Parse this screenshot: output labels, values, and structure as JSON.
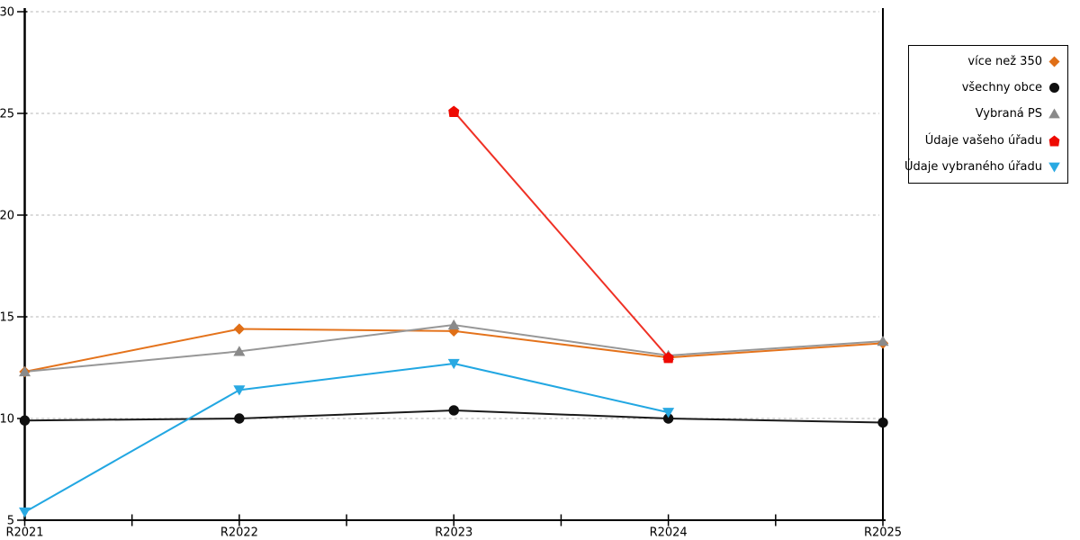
{
  "chart_data": {
    "type": "line",
    "title": "",
    "x_categories": [
      "R2021",
      "R2022",
      "R2023",
      "R2024",
      "R2025"
    ],
    "y_ticks": [
      5,
      10,
      15,
      20,
      25,
      30
    ],
    "ylim": [
      5,
      30
    ],
    "grid": {
      "horizontal": true,
      "style": "dashed",
      "color": "#C4C4C4"
    },
    "legend_position": "outside-right",
    "axis_color": "#000000",
    "series": [
      {
        "id": "vice-nez-350",
        "name": "více než 350",
        "marker": "diamond",
        "line_color": "#E4731C",
        "marker_color": "#E06F17",
        "values": [
          12.3,
          14.4,
          14.3,
          13.0,
          13.7
        ]
      },
      {
        "id": "vsechny-obce",
        "name": "všechny obce",
        "marker": "circle",
        "line_color": "#1A1A1A",
        "marker_color": "#0F0F0F",
        "values": [
          9.9,
          10.0,
          10.4,
          10.0,
          9.8
        ]
      },
      {
        "id": "vybrana-ps",
        "name": "Vybraná PS",
        "marker": "triangle-up",
        "line_color": "#979797",
        "marker_color": "#8A8A8A",
        "values": [
          12.3,
          13.3,
          14.6,
          13.1,
          13.8
        ]
      },
      {
        "id": "udaje-vaseho-uradu",
        "name": "Údaje vašeho úřadu",
        "marker": "pentagon",
        "line_color": "#EF3125",
        "marker_color": "#EE0A02",
        "values": [
          null,
          null,
          25.1,
          13.0,
          null
        ]
      },
      {
        "id": "udaje-vybraneho-uradu",
        "name": "Údaje vybraného úřadu",
        "marker": "triangle-down",
        "line_color": "#22A7E2",
        "marker_color": "#29A9E2",
        "values": [
          5.4,
          11.4,
          12.7,
          10.3,
          null
        ]
      }
    ]
  }
}
